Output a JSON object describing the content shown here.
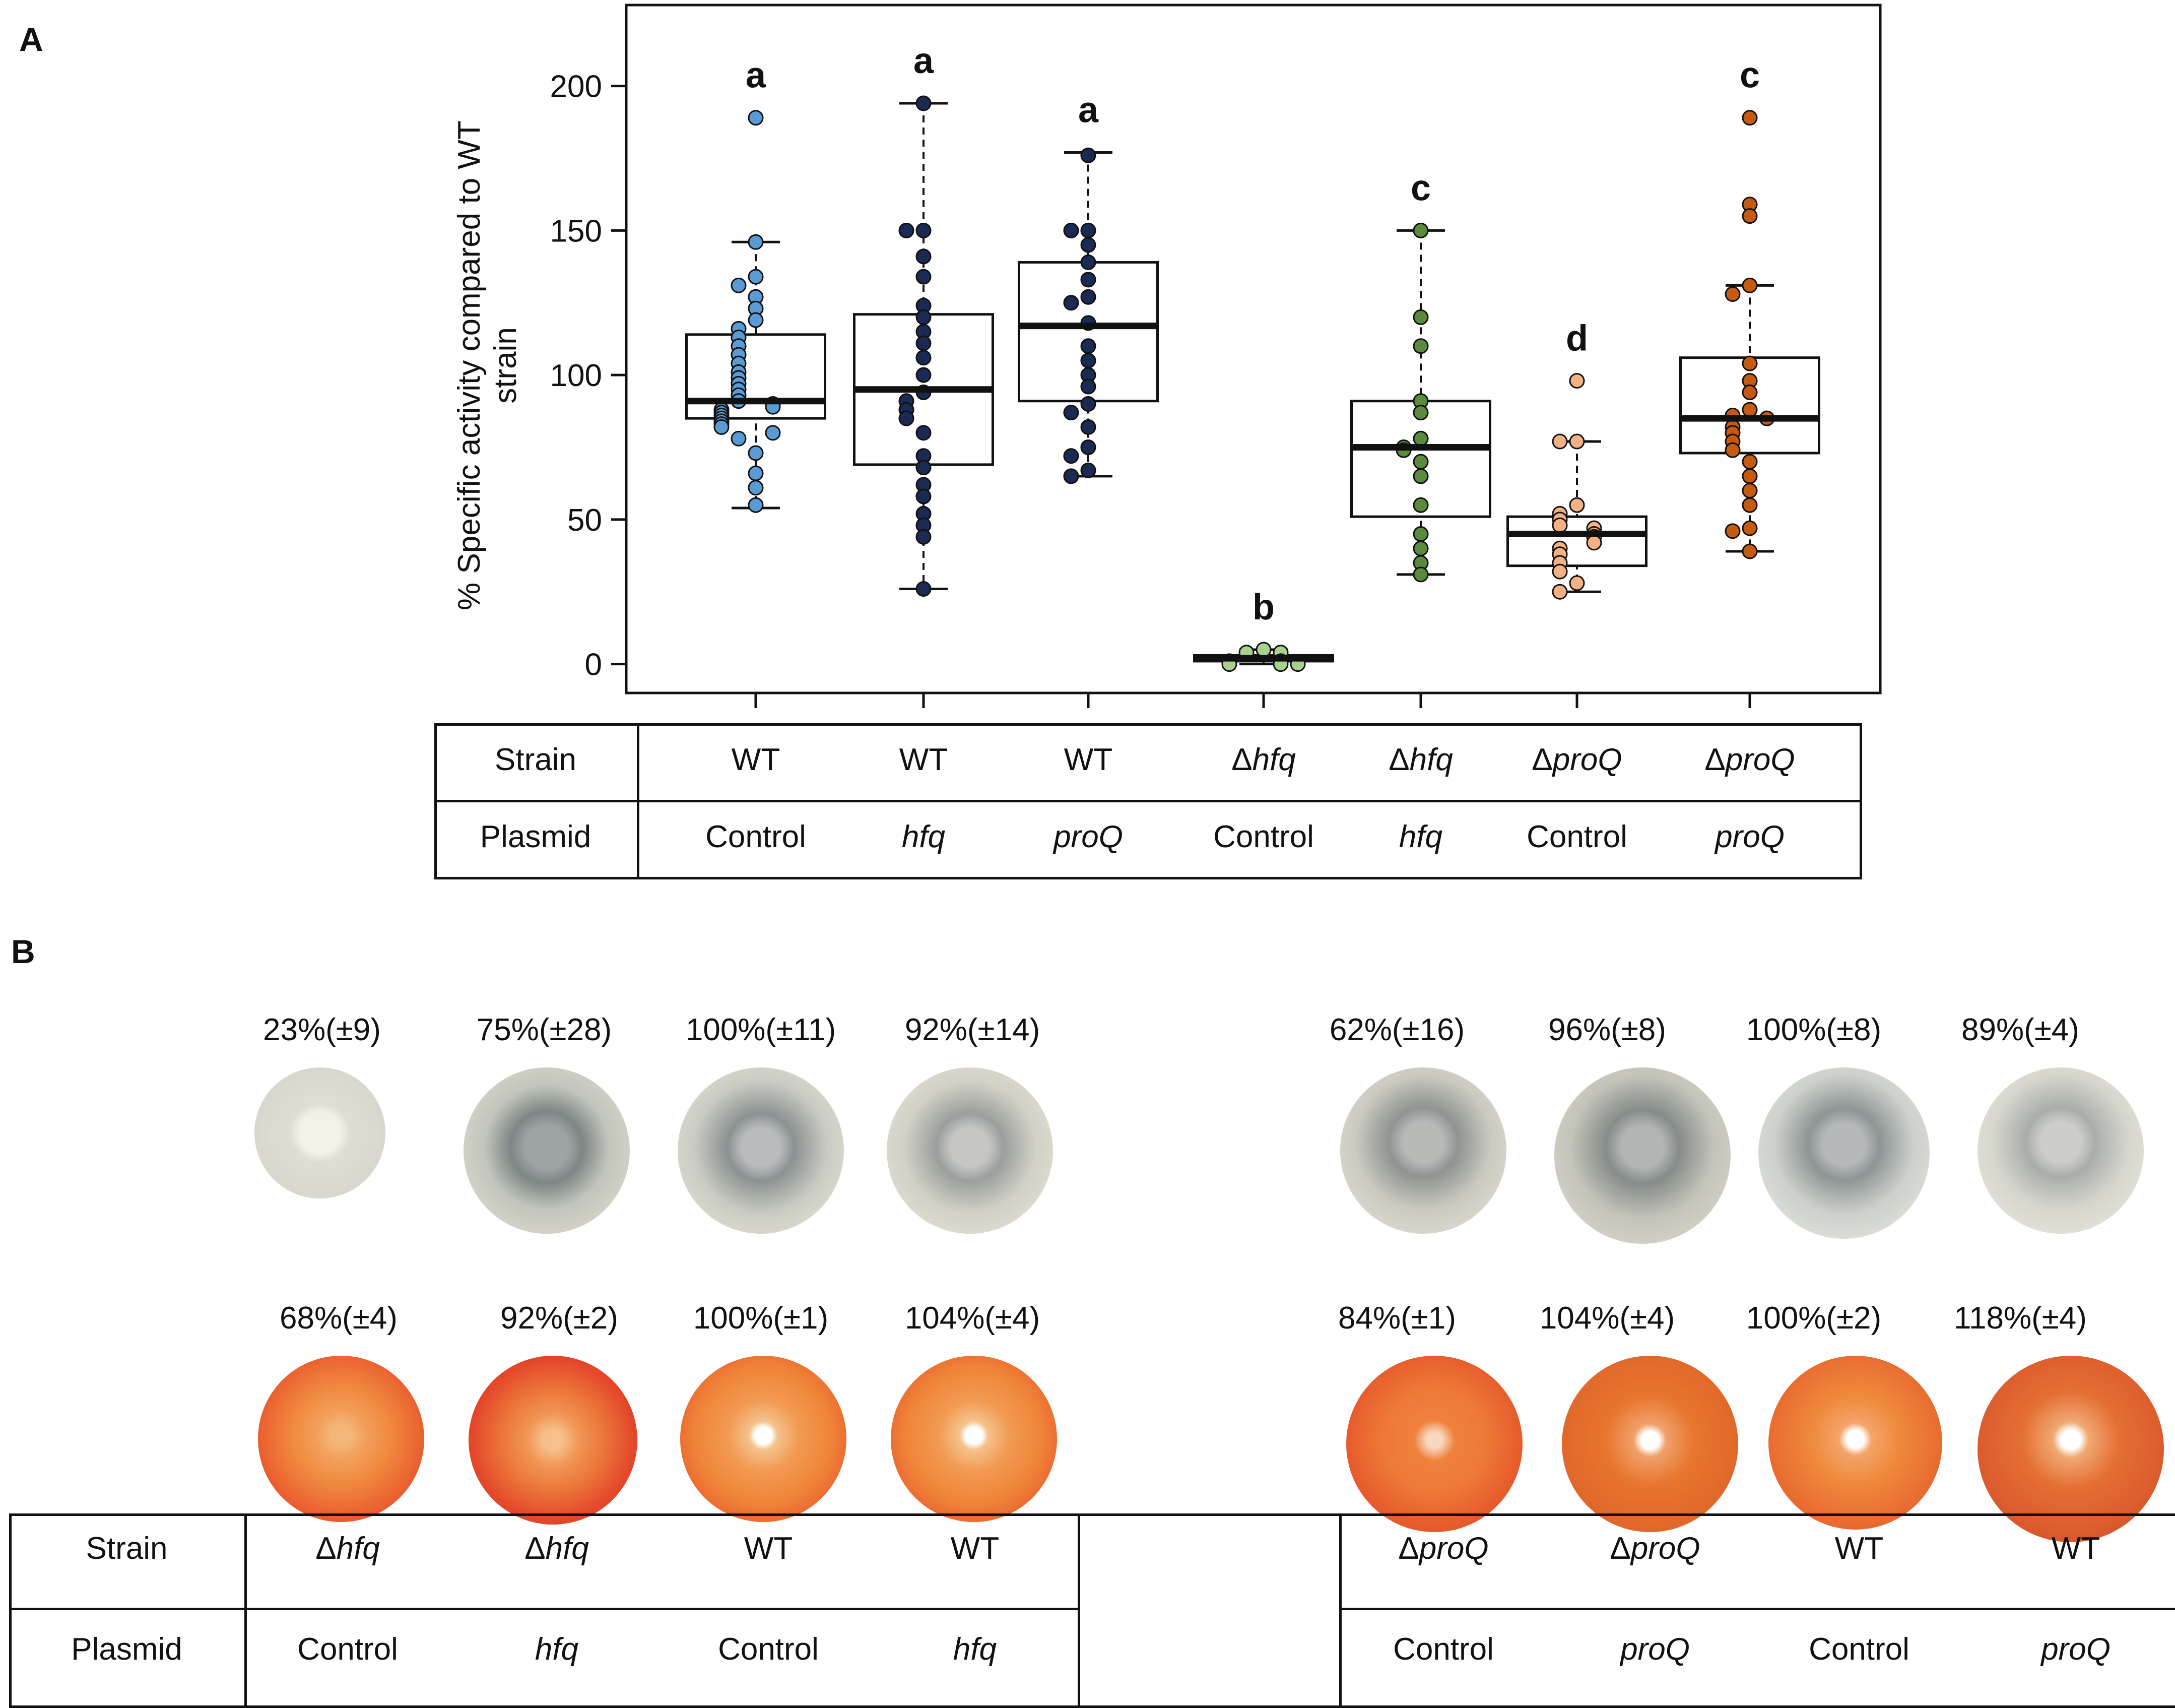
{
  "panel_a": {
    "label": "A",
    "chart_data": {
      "type": "box",
      "ylabel": "% Specific activity compared to WT strain",
      "ylabel_line1": "% Specific activity compared to WT",
      "ylabel_line2": "strain",
      "ylim": [
        -10,
        228
      ],
      "yticks": [
        0,
        50,
        100,
        150,
        200
      ],
      "groups": [
        {
          "strain": "WT",
          "strain_prefix": "",
          "strain_italic": "",
          "strain_plain": "WT",
          "plasmid": "Control",
          "plasmid_italic": false,
          "letter": "a",
          "color": "#5b9bd5",
          "whisker_low": 54,
          "q1": 85,
          "median": 91,
          "q3": 114,
          "whisker_high": 146,
          "points": [
            189,
            146,
            134,
            131,
            127,
            123,
            119,
            116,
            113,
            110,
            107,
            104,
            101,
            99,
            97,
            95,
            93,
            91,
            90,
            89,
            88,
            87,
            86,
            85,
            84,
            83,
            82,
            80,
            78,
            73,
            66,
            61,
            55
          ]
        },
        {
          "strain": "WT",
          "strain_prefix": "",
          "strain_italic": "",
          "strain_plain": "WT",
          "plasmid": "hfq",
          "plasmid_italic": true,
          "letter": "a",
          "color": "#1a2a52",
          "whisker_low": 26,
          "q1": 69,
          "median": 95,
          "q3": 121,
          "whisker_high": 194,
          "points": [
            194,
            150,
            150,
            141,
            134,
            124,
            120,
            115,
            111,
            106,
            100,
            94,
            91,
            88,
            85,
            80,
            72,
            68,
            62,
            58,
            52,
            48,
            44,
            26
          ]
        },
        {
          "strain": "WT",
          "strain_prefix": "",
          "strain_italic": "",
          "strain_plain": "WT",
          "plasmid": "proQ",
          "plasmid_italic": true,
          "letter": "a",
          "color": "#1a2a52",
          "whisker_low": 65,
          "q1": 91,
          "median": 117,
          "q3": 139,
          "whisker_high": 177,
          "points": [
            176,
            150,
            150,
            145,
            139,
            133,
            127,
            125,
            118,
            110,
            105,
            100,
            96,
            90,
            87,
            82,
            75,
            72,
            67,
            65
          ]
        },
        {
          "strain": "Δhfq",
          "strain_prefix": "Δ",
          "strain_italic": "hfq",
          "strain_plain": "",
          "plasmid": "Control",
          "plasmid_italic": false,
          "letter": "b",
          "color": "#a9d18e",
          "whisker_low": 0,
          "q1": 1,
          "median": 2,
          "q3": 3,
          "whisker_high": 5,
          "points": [
            4,
            4,
            5,
            1,
            1,
            0,
            0,
            0
          ]
        },
        {
          "strain": "Δhfq",
          "strain_prefix": "Δ",
          "strain_italic": "hfq",
          "strain_plain": "",
          "plasmid": "hfq",
          "plasmid_italic": true,
          "letter": "c",
          "color": "#5a8a3c",
          "whisker_low": 31,
          "q1": 51,
          "median": 75,
          "q3": 91,
          "whisker_high": 150,
          "points": [
            150,
            120,
            110,
            91,
            87,
            78,
            75,
            74,
            70,
            65,
            55,
            45,
            40,
            35,
            31
          ]
        },
        {
          "strain": "ΔproQ",
          "strain_prefix": "Δ",
          "strain_italic": "proQ",
          "strain_plain": "",
          "plasmid": "Control",
          "plasmid_italic": false,
          "letter": "d",
          "color": "#f4b183",
          "whisker_low": 25,
          "q1": 34,
          "median": 45,
          "q3": 51,
          "whisker_high": 77,
          "points": [
            98,
            77,
            77,
            55,
            52,
            50,
            48,
            47,
            45,
            44,
            42,
            40,
            38,
            35,
            32,
            28,
            25
          ]
        },
        {
          "strain": "ΔproQ",
          "strain_prefix": "Δ",
          "strain_italic": "proQ",
          "strain_plain": "",
          "plasmid": "proQ",
          "plasmid_italic": true,
          "letter": "c",
          "color": "#c55a11",
          "whisker_low": 39,
          "q1": 73,
          "median": 85,
          "q3": 106,
          "whisker_high": 131,
          "points": [
            189,
            159,
            155,
            131,
            128,
            104,
            98,
            94,
            88,
            86,
            85,
            82,
            80,
            77,
            74,
            70,
            65,
            60,
            55,
            47,
            46,
            39
          ]
        }
      ]
    },
    "table": {
      "row1_label": "Strain",
      "row2_label": "Plasmid"
    }
  },
  "panel_b": {
    "label": "B",
    "left_top_percents": [
      "23%(±9)",
      "75%(±28)",
      "100%(±11)",
      "92%(±14)"
    ],
    "left_bottom_percents": [
      "68%(±4)",
      "92%(±2)",
      "100%(±1)",
      "104%(±4)"
    ],
    "right_top_percents": [
      "62%(±16)",
      "96%(±8)",
      "100%(±8)",
      "89%(±4)"
    ],
    "right_bottom_percents": [
      "84%(±1)",
      "104%(±4)",
      "100%(±2)",
      "118%(±4)"
    ],
    "table": {
      "row1_label": "Strain",
      "row2_label": "Plasmid",
      "left_strains": [
        {
          "prefix": "Δ",
          "italic": "hfq",
          "plain": ""
        },
        {
          "prefix": "Δ",
          "italic": "hfq",
          "plain": ""
        },
        {
          "prefix": "",
          "italic": "",
          "plain": "WT"
        },
        {
          "prefix": "",
          "italic": "",
          "plain": "WT"
        }
      ],
      "left_plasmids": [
        {
          "text": "Control",
          "italic": false
        },
        {
          "text": "hfq",
          "italic": true
        },
        {
          "text": "Control",
          "italic": false
        },
        {
          "text": "hfq",
          "italic": true
        }
      ],
      "right_strains": [
        {
          "prefix": "Δ",
          "italic": "proQ",
          "plain": ""
        },
        {
          "prefix": "Δ",
          "italic": "proQ",
          "plain": ""
        },
        {
          "prefix": "",
          "italic": "",
          "plain": "WT"
        },
        {
          "prefix": "",
          "italic": "",
          "plain": "WT"
        }
      ],
      "right_plasmids": [
        {
          "text": "Control",
          "italic": false
        },
        {
          "text": "proQ",
          "italic": true
        },
        {
          "text": "Control",
          "italic": false
        },
        {
          "text": "proQ",
          "italic": true
        }
      ]
    }
  }
}
